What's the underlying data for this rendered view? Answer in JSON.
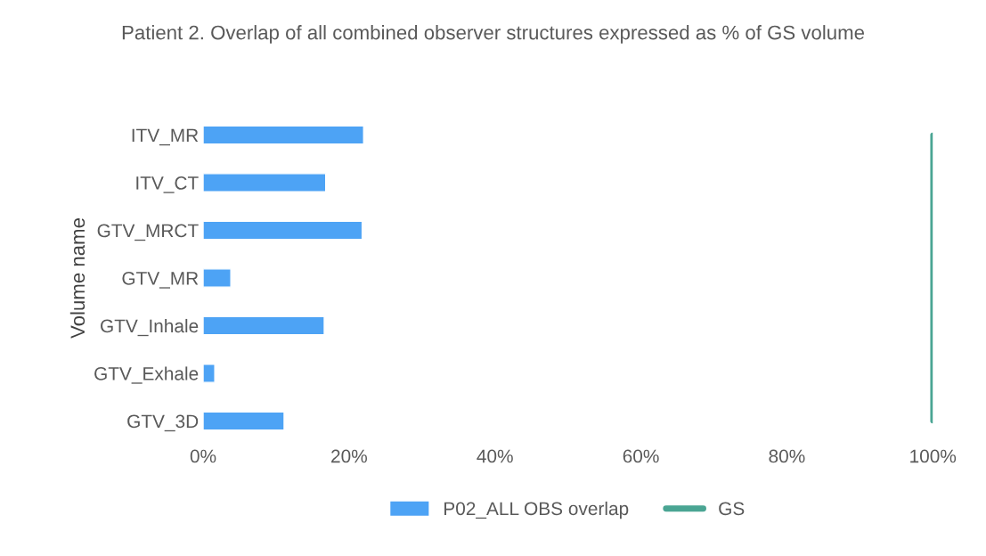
{
  "chart_data": {
    "type": "bar",
    "orientation": "horizontal",
    "title": "Patient 2. Overlap of all combined observer structures expressed as % of GS volume",
    "ylabel": "Volume name",
    "categories": [
      "ITV_MR",
      "ITV_CT",
      "GTV_MRCT",
      "GTV_MR",
      "GTV_Inhale",
      "GTV_Exhale",
      "GTV_3D"
    ],
    "series": [
      {
        "name": "P02_ALL OBS overlap",
        "color": "#4da3f5",
        "values": [
          22,
          16.8,
          21.8,
          3.8,
          16.6,
          1.6,
          11.1
        ]
      },
      {
        "name": "GS",
        "type": "line",
        "color": "#4aa593",
        "values": [
          100,
          100,
          100,
          100,
          100,
          100,
          100
        ]
      }
    ],
    "xlim": [
      0,
      100
    ],
    "xticks": [
      {
        "value": 0,
        "label": "0%"
      },
      {
        "value": 20,
        "label": "20%"
      },
      {
        "value": 40,
        "label": "40%"
      },
      {
        "value": 60,
        "label": "60%"
      },
      {
        "value": 80,
        "label": "80%"
      },
      {
        "value": 100,
        "label": "100%"
      }
    ],
    "grid": false,
    "legend": "bottom"
  }
}
